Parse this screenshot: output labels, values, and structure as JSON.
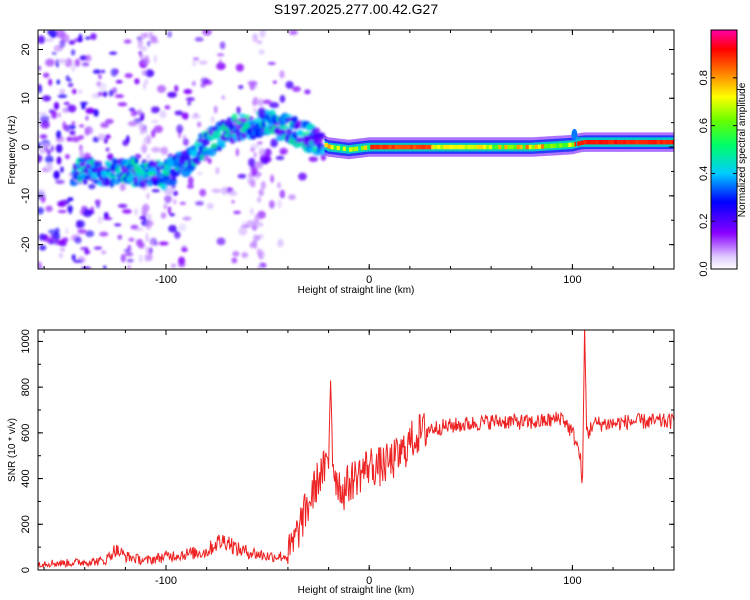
{
  "title": "S197.2025.277.00.42.G27",
  "chart_data": [
    {
      "type": "heatmap",
      "title": "S197.2025.277.00.42.G27",
      "xlabel": "Height of straight line (km)",
      "ylabel": "Frequency (Hz)",
      "xlim": [
        -163,
        150
      ],
      "ylim": [
        -25,
        24
      ],
      "x_ticks": [
        -100,
        0,
        100
      ],
      "y_ticks": [
        -20,
        -10,
        0,
        10,
        20
      ],
      "colorbar": {
        "label": "Normalized spectral amplitude",
        "range": [
          0.0,
          1.0
        ],
        "ticks": [
          0.0,
          0.2,
          0.4,
          0.6,
          0.8
        ],
        "colormap": [
          "#ffffff",
          "#8800ff",
          "#0000ff",
          "#00ffff",
          "#00ff00",
          "#ffff00",
          "#ff0000",
          "#ff00aa"
        ]
      },
      "ridge": {
        "x": [
          -140,
          -120,
          -100,
          -90,
          -80,
          -70,
          -55,
          -40,
          -30,
          -20,
          -10,
          0,
          20,
          50,
          80,
          100,
          105,
          150
        ],
        "freq": [
          -5,
          -5,
          -6,
          -3,
          1,
          3,
          5,
          4,
          2,
          0,
          -0.5,
          0,
          0,
          0,
          0,
          0.5,
          1,
          1
        ]
      }
    },
    {
      "type": "line",
      "xlabel": "Height of straight line (km)",
      "ylabel": "SNR (10 * v/v)",
      "xlim": [
        -163,
        150
      ],
      "ylim": [
        0,
        1050
      ],
      "x_ticks": [
        -100,
        0,
        100
      ],
      "y_ticks": [
        0,
        200,
        400,
        600,
        800,
        1000
      ],
      "color": "#ee2222",
      "series": [
        {
          "name": "SNR",
          "x": [
            -163,
            -150,
            -140,
            -130,
            -125,
            -120,
            -110,
            -100,
            -90,
            -80,
            -75,
            -70,
            -65,
            -60,
            -55,
            -50,
            -40,
            -37,
            -35,
            -33,
            -30,
            -28,
            -26,
            -24,
            -22,
            -20,
            -19,
            -18,
            -17,
            -15,
            -13,
            -10,
            -5,
            0,
            5,
            10,
            15,
            20,
            25,
            30,
            40,
            50,
            60,
            70,
            80,
            90,
            95,
            97,
            100,
            102,
            104,
            105,
            106,
            107,
            108,
            110,
            120,
            130,
            140,
            150
          ],
          "y": [
            30,
            30,
            35,
            40,
            90,
            60,
            40,
            60,
            70,
            80,
            120,
            130,
            90,
            80,
            70,
            60,
            60,
            120,
            170,
            220,
            280,
            330,
            380,
            420,
            440,
            460,
            870,
            500,
            420,
            380,
            340,
            380,
            420,
            460,
            450,
            470,
            500,
            560,
            600,
            620,
            630,
            640,
            650,
            650,
            645,
            655,
            670,
            640,
            600,
            560,
            480,
            380,
            1050,
            620,
            600,
            640,
            640,
            650,
            650,
            650
          ]
        }
      ]
    }
  ]
}
